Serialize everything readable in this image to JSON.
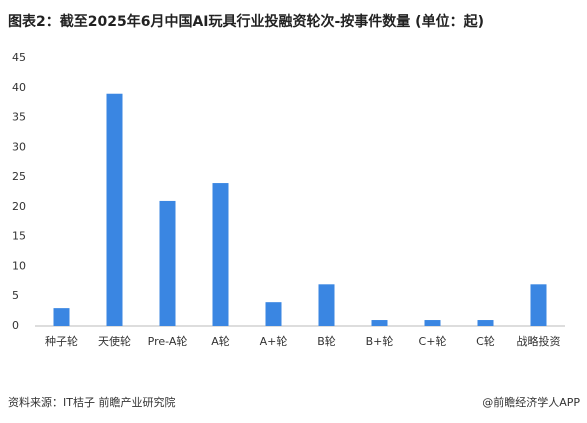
{
  "chart_data": {
    "type": "bar",
    "title": "图表2：截至2025年6月中国AI玩具行业投融资轮次-按事件数量 (单位：起)",
    "categories": [
      "种子轮",
      "天使轮",
      "Pre-A轮",
      "A轮",
      "A+轮",
      "B轮",
      "B+轮",
      "C+轮",
      "C轮",
      "战略投资"
    ],
    "values": [
      3,
      39,
      21,
      24,
      4,
      7,
      1,
      1,
      1,
      7
    ],
    "color": "#3a86e2",
    "ylim": [
      0,
      45
    ],
    "yticks": [
      0,
      5,
      10,
      15,
      20,
      25,
      30,
      35,
      40,
      45
    ],
    "grid": false
  },
  "footer": {
    "source": "资料来源：IT桔子 前瞻产业研究院",
    "brand": "@前瞻经济学人APP"
  }
}
